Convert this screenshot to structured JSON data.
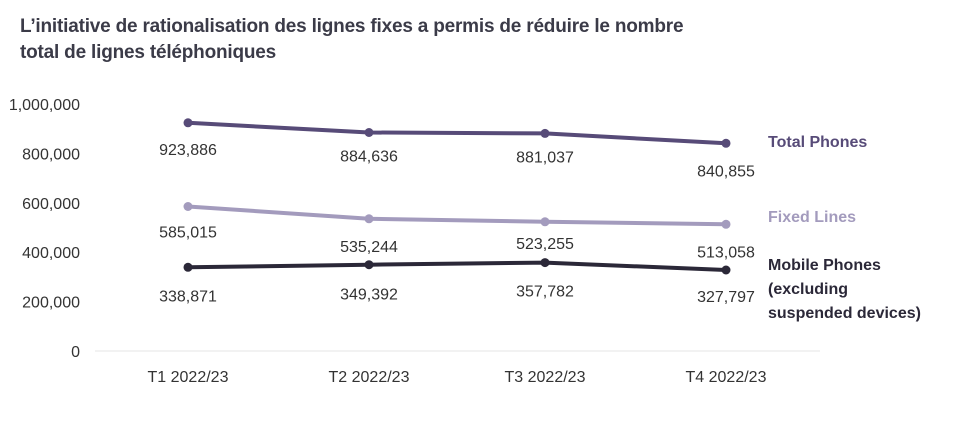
{
  "chart_data": {
    "type": "line",
    "title": "L’initiative de rationalisation des lignes fixes a permis de réduire le nombre total de lignes téléphoniques",
    "categories": [
      "T1 2022/23",
      "T2 2022/23",
      "T3 2022/23",
      "T4 2022/23"
    ],
    "yticks": [
      "1,000,000",
      "800,000",
      "600,000",
      "400,000",
      "200,000",
      "0"
    ],
    "ylim": [
      0,
      1000000
    ],
    "grid": false,
    "legend": "right",
    "series": [
      {
        "name": "Total Phones",
        "name_lines": [
          "Total Phones"
        ],
        "values": [
          923886,
          884636,
          881037,
          840855
        ],
        "labels": [
          "923,886",
          "884,636",
          "881,037",
          "840,855"
        ],
        "color": "#574b78"
      },
      {
        "name": "Fixed Lines",
        "name_lines": [
          "Fixed Lines"
        ],
        "values": [
          585015,
          535244,
          523255,
          513058
        ],
        "labels": [
          "585,015",
          "535,244",
          "523,255",
          "513,058"
        ],
        "color": "#a39bbd"
      },
      {
        "name": "Mobile Phones (excluding suspended devices)",
        "name_lines": [
          "Mobile Phones",
          "(excluding",
          "suspended devices)"
        ],
        "values": [
          338871,
          349392,
          357782,
          327797
        ],
        "labels": [
          "338,871",
          "349,392",
          "357,782",
          "327,797"
        ],
        "color": "#2b2838"
      }
    ]
  }
}
